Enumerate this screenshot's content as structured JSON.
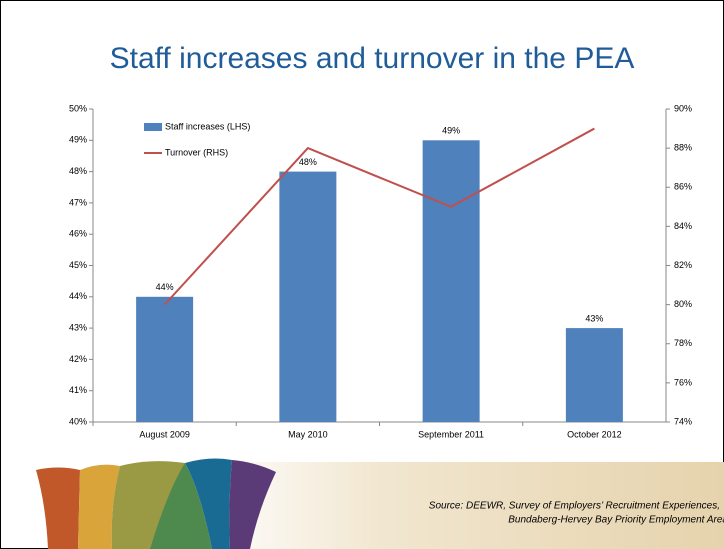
{
  "chart_data": {
    "type": "bar",
    "title": "Staff increases and turnover in the PEA",
    "categories": [
      "August 2009",
      "May 2010",
      "September 2011",
      "October 2012"
    ],
    "series": [
      {
        "name": "Staff increases (LHS)",
        "type": "bar",
        "color": "#4f81bd",
        "axis": "y",
        "values": [
          44,
          48,
          49,
          43
        ],
        "value_labels": [
          "44%",
          "48%",
          "49%",
          "43%"
        ]
      },
      {
        "name": "Turnover (RHS)",
        "type": "line",
        "color": "#c0504d",
        "axis": "y2",
        "values": [
          80,
          88,
          85,
          89
        ]
      }
    ],
    "ylim": [
      40,
      50
    ],
    "yticks": [
      {
        "value": 40,
        "label": "40%"
      },
      {
        "value": 41,
        "label": "41%"
      },
      {
        "value": 42,
        "label": "42%"
      },
      {
        "value": 43,
        "label": "43%"
      },
      {
        "value": 44,
        "label": "44%"
      },
      {
        "value": 45,
        "label": "45%"
      },
      {
        "value": 46,
        "label": "46%"
      },
      {
        "value": 47,
        "label": "47%"
      },
      {
        "value": 48,
        "label": "48%"
      },
      {
        "value": 49,
        "label": "49%"
      },
      {
        "value": 50,
        "label": "50%"
      }
    ],
    "y2lim": [
      74,
      90
    ],
    "y2ticks": [
      {
        "value": 74,
        "label": "74%"
      },
      {
        "value": 76,
        "label": "76%"
      },
      {
        "value": 78,
        "label": "78%"
      },
      {
        "value": 80,
        "label": "80%"
      },
      {
        "value": 82,
        "label": "82%"
      },
      {
        "value": 84,
        "label": "84%"
      },
      {
        "value": 86,
        "label": "86%"
      },
      {
        "value": 88,
        "label": "88%"
      },
      {
        "value": 90,
        "label": "90%"
      }
    ],
    "grid": false,
    "legend": "top-left",
    "notes": [
      "Source: DEEWR, Survey of Employers’ Recruitment Experiences,",
      "Bundaberg-Hervey Bay Priority Employment Area"
    ]
  }
}
